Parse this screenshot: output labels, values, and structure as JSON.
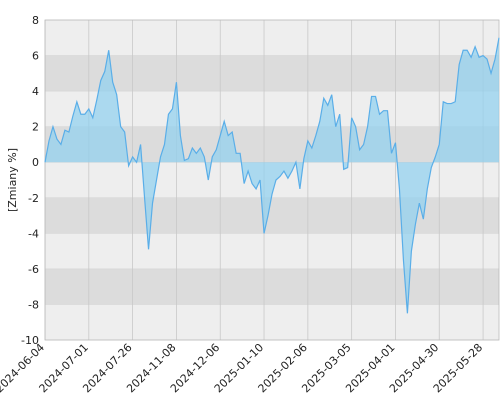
{
  "chart_data": {
    "type": "area",
    "y_label": "[Zmiany %]",
    "categories": [
      "2024-06-04",
      null,
      null,
      null,
      null,
      null,
      null,
      null,
      null,
      null,
      null,
      "2024-07-01",
      null,
      null,
      null,
      null,
      null,
      null,
      null,
      null,
      null,
      null,
      "2024-07-26",
      null,
      null,
      null,
      null,
      null,
      null,
      null,
      null,
      null,
      null,
      "2024-11-08",
      null,
      null,
      null,
      null,
      null,
      null,
      null,
      null,
      null,
      null,
      "2024-12-06",
      null,
      null,
      null,
      null,
      null,
      null,
      null,
      null,
      null,
      null,
      "2025-01-10",
      null,
      null,
      null,
      null,
      null,
      null,
      null,
      null,
      null,
      null,
      "2025-02-06",
      null,
      null,
      null,
      null,
      null,
      null,
      null,
      null,
      null,
      null,
      "2025-03-05",
      null,
      null,
      null,
      null,
      null,
      null,
      null,
      null,
      null,
      null,
      "2025-04-01",
      null,
      null,
      null,
      null,
      null,
      null,
      null,
      null,
      null,
      null,
      "2025-04-30",
      null,
      null,
      null,
      null,
      null,
      null,
      null,
      null,
      null,
      null,
      "2025-05-28",
      null,
      null,
      null,
      null
    ],
    "values": [
      0,
      1.2,
      2,
      1.3,
      1.0,
      1.8,
      1.7,
      2.6,
      3.4,
      2.7,
      2.7,
      3.0,
      2.5,
      3.5,
      4.6,
      5.1,
      6.3,
      4.5,
      3.8,
      2.0,
      1.7,
      -0.2,
      0.3,
      0,
      1.0,
      -2.0,
      -4.9,
      -2.3,
      -1.0,
      0.3,
      1.0,
      2.7,
      3.0,
      4.5,
      1.5,
      0.1,
      0.2,
      0.8,
      0.5,
      0.8,
      0.3,
      -1.0,
      0.3,
      0.7,
      1.5,
      2.3,
      1.5,
      1.7,
      0.5,
      0.5,
      -1.2,
      -0.5,
      -1.2,
      -1.5,
      -1.0,
      -4.0,
      -3.0,
      -1.8,
      -1.0,
      -0.8,
      -0.5,
      -0.9,
      -0.5,
      0,
      -1.5,
      0.2,
      1.2,
      0.8,
      1.5,
      2.3,
      3.6,
      3.2,
      3.8,
      2.0,
      2.7,
      -0.4,
      -0.3,
      2.5,
      2.0,
      0.7,
      1.0,
      2.0,
      3.7,
      3.7,
      2.7,
      2.9,
      2.9,
      0.5,
      1.1,
      -1.5,
      -5.5,
      -8.5,
      -5,
      -3.5,
      -2.3,
      -3.2,
      -1.5,
      -0.3,
      0.3,
      1.0,
      3.4,
      3.3,
      3.3,
      3.4,
      5.5,
      6.3,
      6.3,
      5.9,
      6.5,
      5.9,
      6.0,
      5.8,
      5.0,
      5.8,
      7.0
    ],
    "color": "#5aaee8",
    "ylim": [
      -10,
      8
    ],
    "yticks": [
      -10,
      -8,
      -6,
      -4,
      -2,
      0,
      2,
      4,
      6,
      8
    ],
    "grid": true
  }
}
